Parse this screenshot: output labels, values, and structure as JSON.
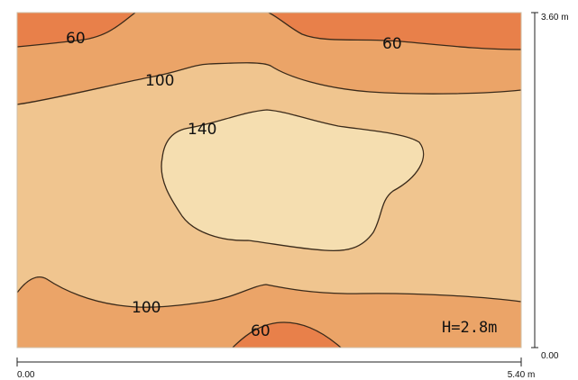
{
  "diagram": {
    "height_label": "H=2.8m",
    "contour_labels": {
      "top_left": "60",
      "top_right": "60",
      "upper": "100",
      "center": "140",
      "lower": "100",
      "bottom": "60"
    },
    "dimensions": {
      "x_start": "0.00",
      "x_end": "5.40 m",
      "y_start": "0.00",
      "y_end": "3.60 m"
    },
    "colors": {
      "band_lowest": "#e8804a",
      "band_low": "#eba468",
      "band_mid": "#f0c58f",
      "band_high": "#f5deb0",
      "contour_line": "#3a2a1a"
    }
  }
}
